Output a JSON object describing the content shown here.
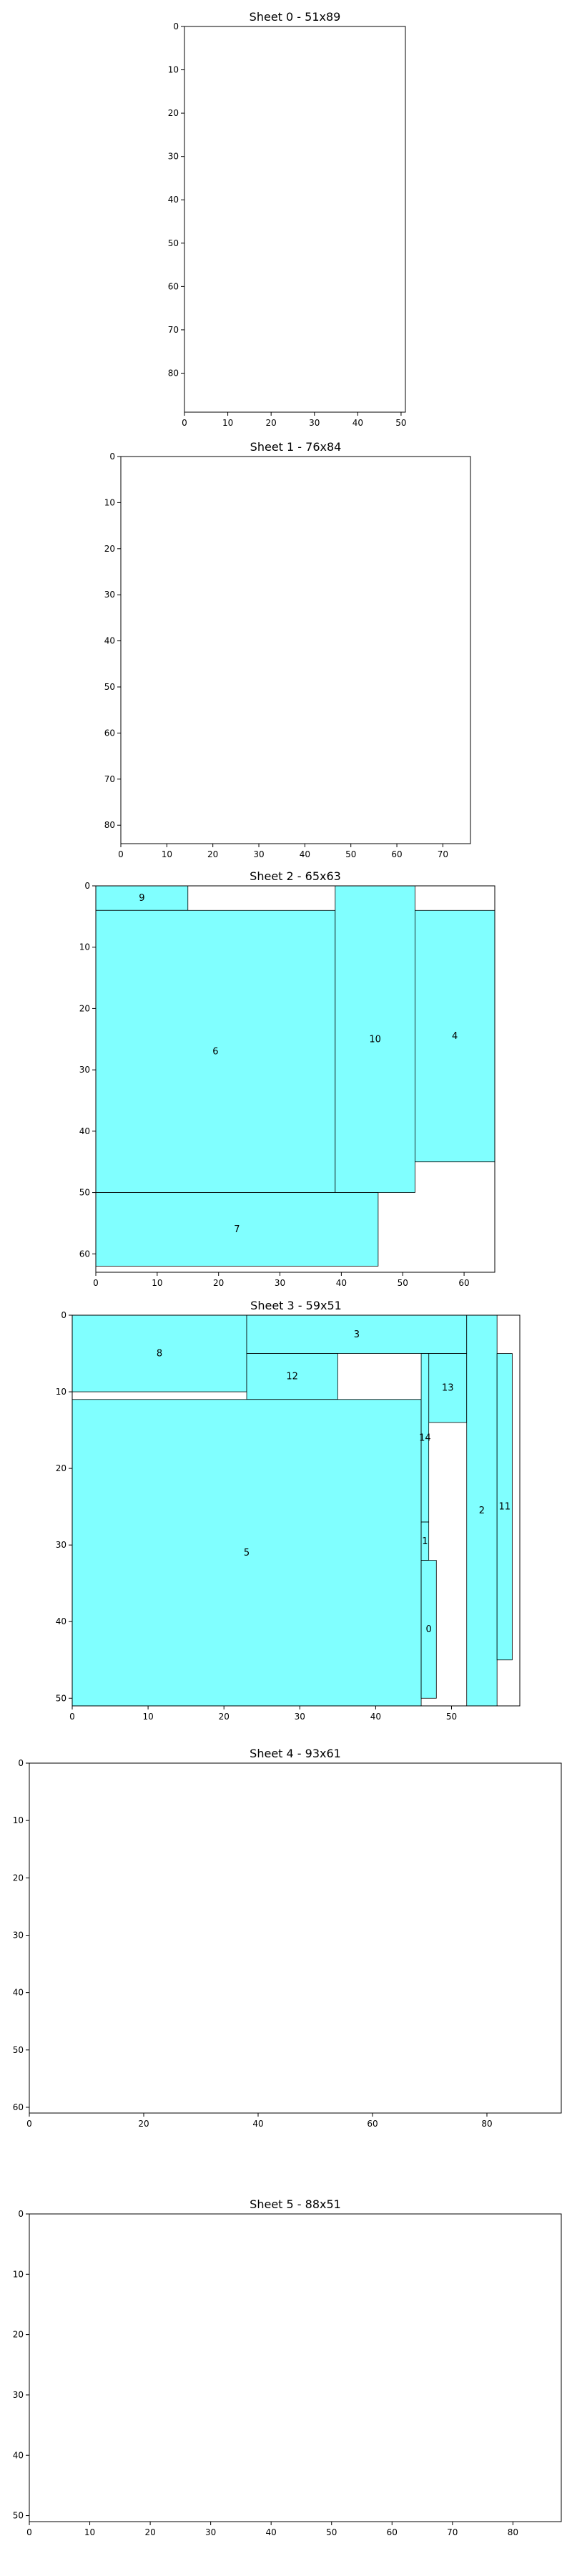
{
  "chart_data": [
    {
      "type": "rect_packing",
      "title": "Sheet 0 - 51x89",
      "width": 51,
      "height": 89,
      "xticks": [
        0,
        10,
        20,
        30,
        40,
        50
      ],
      "yticks": [
        0,
        10,
        20,
        30,
        40,
        50,
        60,
        70,
        80
      ],
      "fill_color": "#80ffff",
      "rects": []
    },
    {
      "type": "rect_packing",
      "title": "Sheet 1 - 76x84",
      "width": 76,
      "height": 84,
      "xticks": [
        0,
        10,
        20,
        30,
        40,
        50,
        60,
        70
      ],
      "yticks": [
        0,
        10,
        20,
        30,
        40,
        50,
        60,
        70,
        80
      ],
      "fill_color": "#80ffff",
      "rects": []
    },
    {
      "type": "rect_packing",
      "title": "Sheet 2 - 65x63",
      "width": 65,
      "height": 63,
      "xticks": [
        0,
        10,
        20,
        30,
        40,
        50,
        60
      ],
      "yticks": [
        0,
        10,
        20,
        30,
        40,
        50,
        60
      ],
      "fill_color": "#80ffff",
      "rects": [
        {
          "label": "9",
          "x": 0,
          "y": 0,
          "w": 15,
          "h": 4
        },
        {
          "label": "6",
          "x": 0,
          "y": 4,
          "w": 39,
          "h": 46
        },
        {
          "label": "10",
          "x": 39,
          "y": 0,
          "w": 13,
          "h": 50
        },
        {
          "label": "4",
          "x": 52,
          "y": 4,
          "w": 13,
          "h": 41
        },
        {
          "label": "7",
          "x": 0,
          "y": 50,
          "w": 46,
          "h": 12
        }
      ]
    },
    {
      "type": "rect_packing",
      "title": "Sheet 3 - 59x51",
      "width": 59,
      "height": 51,
      "xticks": [
        0,
        10,
        20,
        30,
        40,
        50
      ],
      "yticks": [
        0,
        10,
        20,
        30,
        40,
        50
      ],
      "fill_color": "#80ffff",
      "rects": [
        {
          "label": "8",
          "x": 0,
          "y": 0,
          "w": 23,
          "h": 10
        },
        {
          "label": "3",
          "x": 23,
          "y": 0,
          "w": 29,
          "h": 5
        },
        {
          "label": "12",
          "x": 23,
          "y": 5,
          "w": 12,
          "h": 6
        },
        {
          "label": "13",
          "x": 47,
          "y": 5,
          "w": 5,
          "h": 9
        },
        {
          "label": "2",
          "x": 52,
          "y": 0,
          "w": 4,
          "h": 51
        },
        {
          "label": "11",
          "x": 56,
          "y": 5,
          "w": 2,
          "h": 40
        },
        {
          "label": "5",
          "x": 0,
          "y": 11,
          "w": 46,
          "h": 40
        },
        {
          "label": "14",
          "x": 46,
          "y": 5,
          "w": 1,
          "h": 22
        },
        {
          "label": "1",
          "x": 46,
          "y": 27,
          "w": 1,
          "h": 5
        },
        {
          "label": "0",
          "x": 46,
          "y": 32,
          "w": 2,
          "h": 18
        }
      ]
    },
    {
      "type": "rect_packing",
      "title": "Sheet 4 - 93x61",
      "width": 93,
      "height": 61,
      "xticks": [
        0,
        20,
        40,
        60,
        80
      ],
      "yticks": [
        0,
        10,
        20,
        30,
        40,
        50,
        60
      ],
      "fill_color": "#80ffff",
      "rects": []
    },
    {
      "type": "rect_packing",
      "title": "Sheet 5 - 88x51",
      "width": 88,
      "height": 51,
      "xticks": [
        0,
        10,
        20,
        30,
        40,
        50,
        60,
        70,
        80
      ],
      "yticks": [
        0,
        10,
        20,
        30,
        40,
        50
      ],
      "fill_color": "#80ffff",
      "rects": []
    }
  ]
}
